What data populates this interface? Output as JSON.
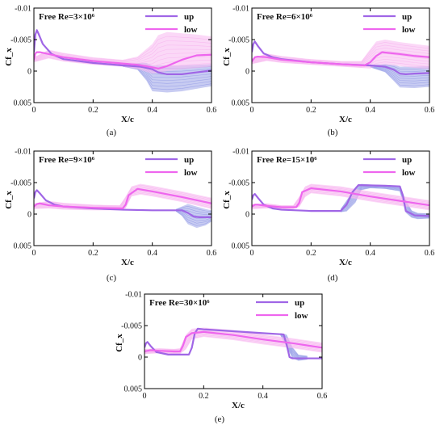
{
  "chart_data": [
    {
      "type": "line",
      "panel": "a",
      "title": "Free Re=3×10⁶",
      "caption": "(a)",
      "xlabel": "X/c",
      "ylabel": "Cf_x",
      "xlim": [
        0,
        0.6
      ],
      "ylim": [
        -0.01,
        0.005
      ],
      "y_inverted": true,
      "xticks": [
        0,
        0.2,
        0.4,
        0.6
      ],
      "yticks": [
        -0.01,
        -0.005,
        0,
        0.005
      ],
      "xtick_labels": [
        "0",
        "0.2",
        "0.4",
        "0.6"
      ],
      "ytick_labels": [
        "-0.01",
        "-0.005",
        "0",
        "0.005"
      ],
      "legend": [
        "up",
        "low"
      ],
      "legend_position": "top-right",
      "series": [
        {
          "name": "up",
          "color": "#a066e6",
          "x": [
            0,
            0.005,
            0.01,
            0.015,
            0.03,
            0.06,
            0.1,
            0.2,
            0.3,
            0.36,
            0.38,
            0.4,
            0.42,
            0.45,
            0.5,
            0.55,
            0.6
          ],
          "y": [
            -0.003,
            -0.0058,
            -0.0065,
            -0.006,
            -0.0043,
            -0.0027,
            -0.0019,
            -0.0013,
            -0.0009,
            -0.0007,
            -0.0005,
            -0.0003,
            0.0002,
            0.0005,
            0.0005,
            0.0002,
            -0.0001
          ]
        },
        {
          "name": "low",
          "color": "#ee66ee",
          "x": [
            0,
            0.005,
            0.01,
            0.02,
            0.05,
            0.1,
            0.2,
            0.3,
            0.35,
            0.4,
            0.42,
            0.45,
            0.5,
            0.55,
            0.6
          ],
          "y": [
            -0.0018,
            -0.0028,
            -0.003,
            -0.003,
            -0.0027,
            -0.0022,
            -0.0016,
            -0.0012,
            -0.001,
            -0.0006,
            -0.0004,
            -0.0008,
            -0.0018,
            -0.0025,
            -0.0026
          ]
        }
      ],
      "bands": [
        {
          "series": "up",
          "color": "#9aa2e8",
          "x": [
            0.3,
            0.35,
            0.38,
            0.4,
            0.45,
            0.5,
            0.55,
            0.6
          ],
          "y_low": [
            -0.0011,
            -0.0013,
            -0.0013,
            -0.0009,
            -0.0009,
            -0.0009,
            -0.001,
            -0.0011
          ],
          "y_high": [
            -0.0007,
            -0.0002,
            0.0015,
            0.0032,
            0.0034,
            0.0032,
            0.0028,
            0.0024
          ]
        },
        {
          "series": "low",
          "color": "#f7b8f0",
          "x": [
            0,
            0.05,
            0.1,
            0.2,
            0.3,
            0.35,
            0.4,
            0.42,
            0.45,
            0.5,
            0.55,
            0.6
          ],
          "y_low": [
            -0.0022,
            -0.0034,
            -0.0029,
            -0.0022,
            -0.0018,
            -0.0023,
            -0.0043,
            -0.0057,
            -0.0062,
            -0.006,
            -0.0058,
            -0.0055
          ],
          "y_high": [
            -0.0014,
            -0.002,
            -0.0015,
            -0.001,
            -0.0007,
            -0.0003,
            0.0004,
            0.0003,
            0.0,
            -0.0003,
            -0.0005,
            -0.0007
          ]
        }
      ]
    },
    {
      "type": "line",
      "panel": "b",
      "title": "Free Re=6×10⁶",
      "caption": "(b)",
      "xlabel": "X/c",
      "ylabel": "Cf_x",
      "xlim": [
        0,
        0.6
      ],
      "ylim": [
        -0.01,
        0.005
      ],
      "y_inverted": true,
      "xticks": [
        0,
        0.2,
        0.4,
        0.6
      ],
      "yticks": [
        -0.01,
        -0.005,
        0,
        0.005
      ],
      "xtick_labels": [
        "0",
        "0.2",
        "0.4",
        "0.6"
      ],
      "ytick_labels": [
        "-0.01",
        "-0.005",
        "0",
        "0.005"
      ],
      "legend": [
        "up",
        "low"
      ],
      "legend_position": "top-right",
      "series": [
        {
          "name": "up",
          "color": "#a066e6",
          "x": [
            0,
            0.005,
            0.01,
            0.02,
            0.04,
            0.07,
            0.1,
            0.2,
            0.3,
            0.4,
            0.45,
            0.48,
            0.5,
            0.52,
            0.55,
            0.6
          ],
          "y": [
            -0.003,
            -0.0043,
            -0.0047,
            -0.004,
            -0.0028,
            -0.0022,
            -0.0019,
            -0.0014,
            -0.0011,
            -0.0009,
            -0.0007,
            -0.0002,
            0.0004,
            0.0005,
            0.0004,
            0.0003
          ]
        },
        {
          "name": "low",
          "color": "#ee66ee",
          "x": [
            0,
            0.01,
            0.02,
            0.05,
            0.1,
            0.2,
            0.3,
            0.38,
            0.4,
            0.42,
            0.44,
            0.5,
            0.55,
            0.6
          ],
          "y": [
            -0.0015,
            -0.0022,
            -0.0023,
            -0.0022,
            -0.0018,
            -0.0014,
            -0.0011,
            -0.0009,
            -0.0014,
            -0.0024,
            -0.003,
            -0.0027,
            -0.0024,
            -0.0022
          ]
        }
      ],
      "bands": [
        {
          "series": "up",
          "color": "#9aa2e8",
          "x": [
            0.4,
            0.45,
            0.48,
            0.5,
            0.55,
            0.6
          ],
          "y_low": [
            -0.001,
            -0.0011,
            -0.001,
            -0.0007,
            -0.0007,
            -0.0008
          ],
          "y_high": [
            -0.0006,
            0.0002,
            0.0016,
            0.0026,
            0.0027,
            0.0025
          ]
        },
        {
          "series": "low",
          "color": "#f7b8f0",
          "x": [
            0,
            0.05,
            0.1,
            0.2,
            0.3,
            0.37,
            0.4,
            0.42,
            0.45,
            0.5,
            0.55,
            0.6
          ],
          "y_low": [
            -0.002,
            -0.0028,
            -0.0024,
            -0.0019,
            -0.0016,
            -0.0016,
            -0.0035,
            -0.0047,
            -0.005,
            -0.0046,
            -0.0043,
            -0.004
          ],
          "y_high": [
            -0.0011,
            -0.0016,
            -0.0013,
            -0.001,
            -0.0007,
            -0.0005,
            -0.0004,
            -0.0008,
            -0.001,
            -0.0008,
            -0.0005,
            -0.0003
          ]
        }
      ]
    },
    {
      "type": "line",
      "panel": "c",
      "title": "Free Re=9×10⁶",
      "caption": "(c)",
      "xlabel": "X/c",
      "ylabel": "Cf_x",
      "xlim": [
        0,
        0.6
      ],
      "ylim": [
        -0.01,
        0.005
      ],
      "y_inverted": true,
      "xticks": [
        0,
        0.2,
        0.4,
        0.6
      ],
      "yticks": [
        -0.01,
        -0.005,
        0,
        0.005
      ],
      "xtick_labels": [
        "0",
        "0.2",
        "0.4",
        "0.6"
      ],
      "ytick_labels": [
        "-0.01",
        "-0.005",
        "0",
        "0.005"
      ],
      "legend": [
        "up",
        "low"
      ],
      "legend_position": "top-right",
      "series": [
        {
          "name": "up",
          "color": "#a066e6",
          "x": [
            0,
            0.005,
            0.01,
            0.02,
            0.04,
            0.07,
            0.1,
            0.2,
            0.3,
            0.4,
            0.5,
            0.52,
            0.54,
            0.56,
            0.6
          ],
          "y": [
            -0.0025,
            -0.0035,
            -0.0038,
            -0.0033,
            -0.0022,
            -0.0015,
            -0.0012,
            -0.0009,
            -0.0007,
            -0.0006,
            -0.0006,
            -0.0002,
            0.0004,
            0.0005,
            0.0005
          ]
        },
        {
          "name": "low",
          "color": "#ee66ee",
          "x": [
            0,
            0.01,
            0.02,
            0.05,
            0.1,
            0.2,
            0.3,
            0.31,
            0.32,
            0.35,
            0.4,
            0.5,
            0.6
          ],
          "y": [
            -0.0012,
            -0.0016,
            -0.0017,
            -0.0014,
            -0.0012,
            -0.001,
            -0.0009,
            -0.0015,
            -0.003,
            -0.004,
            -0.0036,
            -0.0027,
            -0.0017
          ]
        }
      ],
      "bands": [
        {
          "series": "up",
          "color": "#9aa2e8",
          "x": [
            0.48,
            0.5,
            0.52,
            0.55,
            0.58,
            0.6
          ],
          "y_low": [
            -0.0008,
            -0.0012,
            -0.0016,
            -0.0012,
            -0.0008,
            -0.0006
          ],
          "y_high": [
            -0.0004,
            0.0003,
            0.0016,
            0.0022,
            0.0018,
            0.0012
          ]
        },
        {
          "series": "low",
          "color": "#f7b8f0",
          "x": [
            0,
            0.05,
            0.1,
            0.2,
            0.29,
            0.31,
            0.33,
            0.36,
            0.4,
            0.5,
            0.6
          ],
          "y_low": [
            -0.0017,
            -0.0021,
            -0.0018,
            -0.0015,
            -0.0014,
            -0.0028,
            -0.0044,
            -0.0048,
            -0.0045,
            -0.0036,
            -0.0026
          ],
          "y_high": [
            -0.0008,
            -0.0009,
            -0.0007,
            -0.0006,
            -0.0006,
            -0.0009,
            -0.0028,
            -0.0031,
            -0.0028,
            -0.0019,
            -0.0008
          ]
        }
      ]
    },
    {
      "type": "line",
      "panel": "d",
      "title": "Free Re=15×10⁶",
      "caption": "(d)",
      "xlabel": "X/c",
      "ylabel": "Cf_x",
      "xlim": [
        0,
        0.6
      ],
      "ylim": [
        -0.01,
        0.005
      ],
      "y_inverted": true,
      "xticks": [
        0,
        0.2,
        0.4,
        0.6
      ],
      "yticks": [
        -0.01,
        -0.005,
        0,
        0.005
      ],
      "xtick_labels": [
        "0",
        "0.2",
        "0.4",
        "0.6"
      ],
      "ytick_labels": [
        "-0.01",
        "-0.005",
        "0",
        "0.005"
      ],
      "legend": [
        "up",
        "low"
      ],
      "legend_position": "top-right",
      "series": [
        {
          "name": "up",
          "color": "#a066e6",
          "x": [
            0,
            0.005,
            0.01,
            0.02,
            0.04,
            0.07,
            0.1,
            0.2,
            0.3,
            0.32,
            0.34,
            0.36,
            0.45,
            0.5,
            0.51,
            0.52,
            0.55,
            0.6
          ],
          "y": [
            -0.0023,
            -0.003,
            -0.0032,
            -0.0026,
            -0.0015,
            -0.0009,
            -0.0007,
            -0.0005,
            -0.0005,
            -0.0015,
            -0.0035,
            -0.0046,
            -0.0045,
            -0.0044,
            -0.003,
            -0.0005,
            0.0002,
            0.0003
          ]
        },
        {
          "name": "low",
          "color": "#ee66ee",
          "x": [
            0,
            0.01,
            0.02,
            0.05,
            0.1,
            0.15,
            0.16,
            0.17,
            0.2,
            0.3,
            0.4,
            0.5,
            0.6
          ],
          "y": [
            -0.0012,
            -0.0015,
            -0.0015,
            -0.0013,
            -0.0011,
            -0.0011,
            -0.0018,
            -0.0035,
            -0.0041,
            -0.0036,
            -0.0028,
            -0.0021,
            -0.0014
          ]
        }
      ],
      "bands": [
        {
          "series": "up",
          "color": "#9aa2e8",
          "x": [
            0.3,
            0.32,
            0.35,
            0.37,
            0.4,
            0.45,
            0.5,
            0.52,
            0.54,
            0.56,
            0.6
          ],
          "y_low": [
            -0.0008,
            -0.0022,
            -0.0043,
            -0.0048,
            -0.0047,
            -0.0046,
            -0.0045,
            -0.0022,
            -0.0006,
            -0.0002,
            -0.0001
          ],
          "y_high": [
            -0.0003,
            -0.0004,
            -0.0018,
            -0.0038,
            -0.0041,
            -0.004,
            -0.0036,
            -0.0002,
            0.0006,
            0.0008,
            0.0007
          ]
        },
        {
          "series": "low",
          "color": "#f7b8f0",
          "x": [
            0,
            0.05,
            0.1,
            0.14,
            0.16,
            0.18,
            0.2,
            0.3,
            0.4,
            0.5,
            0.6
          ],
          "y_low": [
            -0.0016,
            -0.0017,
            -0.0014,
            -0.0014,
            -0.0028,
            -0.0044,
            -0.0048,
            -0.0044,
            -0.0036,
            -0.0029,
            -0.0022
          ],
          "y_high": [
            -0.0008,
            -0.0009,
            -0.0008,
            -0.0008,
            -0.0011,
            -0.0027,
            -0.0033,
            -0.0028,
            -0.002,
            -0.0013,
            -0.0006
          ]
        }
      ]
    },
    {
      "type": "line",
      "panel": "e",
      "title": "Free Re=30×10⁶",
      "caption": "(e)",
      "xlabel": "X/c",
      "ylabel": "Cf_x",
      "xlim": [
        0,
        0.6
      ],
      "ylim": [
        -0.01,
        0.005
      ],
      "y_inverted": true,
      "xticks": [
        0,
        0.2,
        0.4,
        0.6
      ],
      "yticks": [
        -0.01,
        -0.005,
        0,
        0.005
      ],
      "xtick_labels": [
        "0",
        "0.2",
        "0.4",
        "0.6"
      ],
      "ytick_labels": [
        "-0.01",
        "-0.005",
        "0",
        "0.005"
      ],
      "legend": [
        "up",
        "low"
      ],
      "legend_position": "top-right",
      "series": [
        {
          "name": "up",
          "color": "#a066e6",
          "x": [
            0,
            0.005,
            0.01,
            0.02,
            0.04,
            0.08,
            0.15,
            0.16,
            0.17,
            0.18,
            0.2,
            0.3,
            0.4,
            0.47,
            0.48,
            0.49,
            0.5,
            0.55,
            0.6
          ],
          "y": [
            -0.0015,
            -0.0022,
            -0.0024,
            -0.0018,
            -0.0008,
            -0.0004,
            -0.0004,
            -0.0015,
            -0.0038,
            -0.0045,
            -0.0044,
            -0.0041,
            -0.0038,
            -0.0036,
            -0.002,
            0.0,
            0.0002,
            0.0002,
            0.0002
          ]
        },
        {
          "name": "low",
          "color": "#ee66ee",
          "x": [
            0,
            0.02,
            0.05,
            0.1,
            0.12,
            0.13,
            0.14,
            0.16,
            0.2,
            0.3,
            0.4,
            0.5,
            0.6
          ],
          "y": [
            -0.0009,
            -0.0011,
            -0.001,
            -0.0009,
            -0.0009,
            -0.0018,
            -0.0032,
            -0.0038,
            -0.004,
            -0.0035,
            -0.0028,
            -0.0022,
            -0.0015
          ]
        }
      ],
      "bands": [
        {
          "series": "up",
          "color": "#9aa2e8",
          "x": [
            0.46,
            0.48,
            0.5,
            0.52,
            0.55
          ],
          "y_low": [
            -0.0038,
            -0.0036,
            -0.0016,
            -0.0004,
            -0.0002
          ],
          "y_high": [
            -0.0034,
            -0.0016,
            0.0002,
            0.0006,
            0.0004
          ]
        },
        {
          "series": "low",
          "color": "#f7b8f0",
          "x": [
            0,
            0.05,
            0.1,
            0.12,
            0.14,
            0.16,
            0.2,
            0.3,
            0.4,
            0.5,
            0.6
          ],
          "y_low": [
            -0.0013,
            -0.0014,
            -0.0013,
            -0.0014,
            -0.0036,
            -0.0045,
            -0.0047,
            -0.0043,
            -0.0036,
            -0.003,
            -0.0023
          ],
          "y_high": [
            -0.0005,
            -0.0006,
            -0.0005,
            -0.0005,
            -0.0012,
            -0.0028,
            -0.0032,
            -0.0027,
            -0.002,
            -0.0014,
            -0.0007
          ]
        }
      ]
    }
  ]
}
